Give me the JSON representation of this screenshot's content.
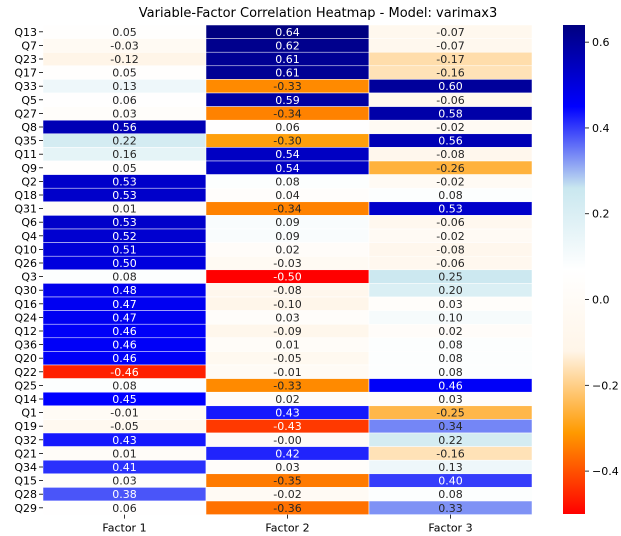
{
  "chart_data": {
    "type": "heatmap",
    "title": "Variable-Factor Correlation Heatmap - Model: varimax3",
    "columns": [
      "Factor 1",
      "Factor 2",
      "Factor 3"
    ],
    "rows": [
      "Q13",
      "Q7",
      "Q23",
      "Q17",
      "Q33",
      "Q5",
      "Q27",
      "Q8",
      "Q35",
      "Q11",
      "Q9",
      "Q2",
      "Q18",
      "Q31",
      "Q6",
      "Q4",
      "Q10",
      "Q26",
      "Q3",
      "Q30",
      "Q16",
      "Q24",
      "Q12",
      "Q36",
      "Q20",
      "Q22",
      "Q25",
      "Q14",
      "Q1",
      "Q19",
      "Q32",
      "Q21",
      "Q34",
      "Q15",
      "Q28",
      "Q29"
    ],
    "values": [
      [
        0.05,
        0.64,
        -0.07
      ],
      [
        -0.03,
        0.62,
        -0.07
      ],
      [
        -0.12,
        0.61,
        -0.17
      ],
      [
        0.05,
        0.61,
        -0.16
      ],
      [
        0.13,
        -0.33,
        0.6
      ],
      [
        0.06,
        0.59,
        -0.06
      ],
      [
        0.03,
        -0.34,
        0.58
      ],
      [
        0.56,
        0.06,
        -0.02
      ],
      [
        0.22,
        -0.3,
        0.56
      ],
      [
        0.16,
        0.54,
        -0.08
      ],
      [
        0.05,
        0.54,
        -0.26
      ],
      [
        0.53,
        0.08,
        -0.02
      ],
      [
        0.53,
        0.04,
        0.08
      ],
      [
        0.01,
        -0.34,
        0.53
      ],
      [
        0.53,
        0.09,
        -0.06
      ],
      [
        0.52,
        0.09,
        -0.02
      ],
      [
        0.51,
        0.02,
        -0.08
      ],
      [
        0.5,
        -0.03,
        -0.06
      ],
      [
        0.08,
        -0.5,
        0.25
      ],
      [
        0.48,
        -0.08,
        0.2
      ],
      [
        0.47,
        -0.1,
        0.03
      ],
      [
        0.47,
        0.03,
        0.1
      ],
      [
        0.46,
        -0.09,
        0.02
      ],
      [
        0.46,
        0.01,
        0.08
      ],
      [
        0.46,
        -0.05,
        0.08
      ],
      [
        -0.46,
        -0.01,
        0.08
      ],
      [
        0.08,
        -0.33,
        0.46
      ],
      [
        0.45,
        0.02,
        0.03
      ],
      [
        -0.01,
        0.43,
        -0.25
      ],
      [
        -0.05,
        -0.43,
        0.34
      ],
      [
        0.43,
        -0.0,
        0.22
      ],
      [
        0.01,
        0.42,
        -0.16
      ],
      [
        0.41,
        0.03,
        0.13
      ],
      [
        0.03,
        -0.35,
        0.4
      ],
      [
        0.38,
        -0.02,
        0.08
      ],
      [
        0.06,
        -0.36,
        0.33
      ]
    ],
    "colorbar": {
      "min": -0.5,
      "max": 0.64,
      "ticks": [
        -0.4,
        -0.2,
        0.0,
        0.2,
        0.4,
        0.6
      ],
      "tick_labels": [
        "−0.4",
        "−0.2",
        "0.0",
        "0.2",
        "0.4",
        "0.6"
      ]
    },
    "colormap": [
      "#ff0000",
      "#ff9a00",
      "#fff5e8",
      "#ffffff",
      "#c9e7ef",
      "#0000ff",
      "#000080"
    ]
  }
}
